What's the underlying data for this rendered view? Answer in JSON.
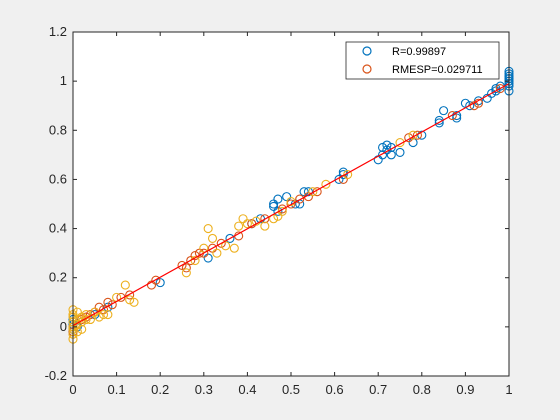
{
  "chart_data": {
    "type": "scatter",
    "title": "",
    "xlabel": "",
    "ylabel": "",
    "xlim": [
      0,
      1
    ],
    "ylim": [
      -0.2,
      1.2
    ],
    "xticks": [
      "0",
      "0.1",
      "0.2",
      "0.3",
      "0.4",
      "0.5",
      "0.6",
      "0.7",
      "0.8",
      "0.9",
      "1"
    ],
    "xtick_values": [
      0,
      0.1,
      0.2,
      0.3,
      0.4,
      0.5,
      0.6,
      0.7,
      0.8,
      0.9,
      1.0
    ],
    "yticks": [
      "-0.2",
      "0",
      "0.2",
      "0.4",
      "0.6",
      "0.8",
      "1",
      "1.2"
    ],
    "ytick_values": [
      -0.2,
      0,
      0.2,
      0.4,
      0.6,
      0.8,
      1.0,
      1.2
    ],
    "grid": false,
    "legend_position": "top-right",
    "legend": [
      {
        "label": "R=0.99897",
        "color": "#0072BD"
      },
      {
        "label": "RMESP=0.029711",
        "color": "#D95319"
      }
    ],
    "fit_line": {
      "x": [
        0,
        1
      ],
      "y": [
        0.005,
        0.99
      ],
      "color": "#ff0000"
    },
    "series": [
      {
        "color": "#0072BD",
        "x": [
          0.0,
          0.0,
          0.0,
          0.0,
          0.0,
          0.0,
          0.01,
          0.02,
          0.05,
          0.08,
          0.2,
          0.31,
          0.36,
          0.41,
          0.43,
          0.46,
          0.46,
          0.47,
          0.47,
          0.49,
          0.51,
          0.52,
          0.53,
          0.54,
          0.61,
          0.62,
          0.62,
          0.7,
          0.71,
          0.71,
          0.72,
          0.72,
          0.73,
          0.73,
          0.75,
          0.78,
          0.8,
          0.84,
          0.84,
          0.85,
          0.88,
          0.88,
          0.9,
          0.91,
          0.93,
          0.95,
          0.96,
          0.97,
          0.97,
          0.98,
          1.0,
          1.0,
          1.0,
          1.0,
          1.0,
          1.0,
          1.0,
          1.0,
          1.0,
          1.0,
          1.0
        ],
        "y": [
          0.0,
          0.02,
          -0.02,
          0.01,
          0.03,
          -0.01,
          0.0,
          0.02,
          0.05,
          0.08,
          0.18,
          0.28,
          0.36,
          0.42,
          0.44,
          0.49,
          0.5,
          0.47,
          0.52,
          0.53,
          0.5,
          0.5,
          0.55,
          0.55,
          0.6,
          0.62,
          0.63,
          0.68,
          0.7,
          0.73,
          0.72,
          0.74,
          0.7,
          0.73,
          0.71,
          0.75,
          0.78,
          0.83,
          0.84,
          0.88,
          0.85,
          0.86,
          0.91,
          0.9,
          0.92,
          0.93,
          0.95,
          0.96,
          0.97,
          0.98,
          0.96,
          0.98,
          1.0,
          1.01,
          1.02,
          1.03,
          1.04,
          1.0,
          1.02,
          0.99,
          1.01
        ]
      },
      {
        "color": "#D95319",
        "x": [
          0.0,
          0.0,
          0.01,
          0.02,
          0.03,
          0.04,
          0.05,
          0.06,
          0.07,
          0.08,
          0.09,
          0.11,
          0.13,
          0.18,
          0.19,
          0.25,
          0.26,
          0.27,
          0.28,
          0.29,
          0.3,
          0.32,
          0.34,
          0.38,
          0.41,
          0.44,
          0.48,
          0.5,
          0.52,
          0.54,
          0.56,
          0.62,
          0.77,
          0.79,
          0.87,
          0.92,
          0.93,
          0.98
        ],
        "y": [
          0.0,
          -0.02,
          0.01,
          0.03,
          0.04,
          0.05,
          0.06,
          0.08,
          0.07,
          0.1,
          0.09,
          0.12,
          0.13,
          0.17,
          0.19,
          0.25,
          0.24,
          0.27,
          0.29,
          0.3,
          0.3,
          0.32,
          0.34,
          0.37,
          0.42,
          0.44,
          0.48,
          0.5,
          0.52,
          0.53,
          0.55,
          0.6,
          0.77,
          0.78,
          0.86,
          0.9,
          0.91,
          0.97
        ]
      },
      {
        "color": "#EDB120",
        "x": [
          0.0,
          0.0,
          0.0,
          0.0,
          0.0,
          0.0,
          0.0,
          0.0,
          0.01,
          0.01,
          0.01,
          0.01,
          0.02,
          0.02,
          0.02,
          0.03,
          0.03,
          0.04,
          0.05,
          0.06,
          0.07,
          0.08,
          0.1,
          0.12,
          0.13,
          0.14,
          0.26,
          0.28,
          0.3,
          0.31,
          0.32,
          0.33,
          0.35,
          0.37,
          0.38,
          0.39,
          0.4,
          0.42,
          0.44,
          0.46,
          0.47,
          0.48,
          0.5,
          0.55,
          0.58,
          0.63,
          0.75,
          0.78
        ],
        "y": [
          0.07,
          0.04,
          0.02,
          -0.03,
          -0.05,
          0.0,
          0.05,
          -0.01,
          0.03,
          -0.02,
          0.06,
          0.01,
          0.02,
          0.04,
          -0.01,
          0.03,
          0.05,
          0.03,
          0.06,
          0.04,
          0.05,
          0.05,
          0.12,
          0.17,
          0.11,
          0.1,
          0.22,
          0.27,
          0.32,
          0.4,
          0.36,
          0.3,
          0.33,
          0.32,
          0.41,
          0.44,
          0.42,
          0.43,
          0.41,
          0.44,
          0.45,
          0.47,
          0.51,
          0.55,
          0.58,
          0.62,
          0.75,
          0.78
        ]
      }
    ]
  }
}
